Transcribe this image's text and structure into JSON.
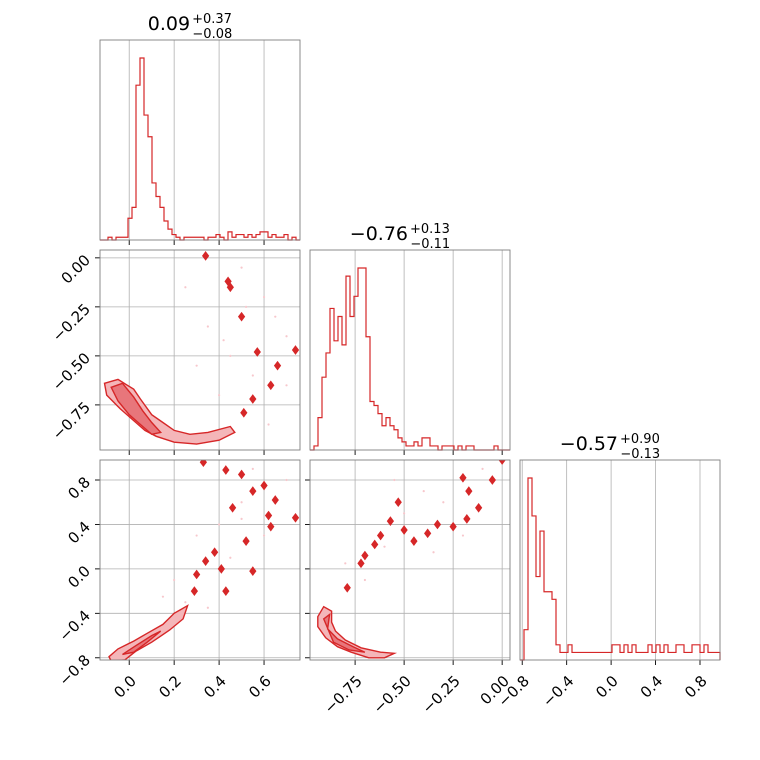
{
  "chart_data": {
    "type": "corner",
    "color": "#d62728",
    "fill_color": "#f4b6b9",
    "scatter_color": "#f7c7cc",
    "grid": true,
    "parameters": [
      {
        "range": [
          -0.13,
          0.76
        ],
        "ticks": [
          0.0,
          0.2,
          0.4,
          0.6
        ],
        "tick_labels": [
          "0.0",
          "0.2",
          "0.4",
          "0.6"
        ],
        "title_value": "0.09",
        "title_plus": "+0.37",
        "title_minus": "−0.08"
      },
      {
        "range": [
          -0.98,
          0.04
        ],
        "ticks": [
          -0.75,
          -0.5,
          -0.25,
          0.0
        ],
        "tick_labels": [
          "−0.75",
          "−0.50",
          "−0.25",
          "0.00"
        ],
        "title_value": "−0.76",
        "title_plus": "+0.13",
        "title_minus": "−0.11"
      },
      {
        "range": [
          -0.82,
          0.98
        ],
        "ticks": [
          -0.8,
          -0.4,
          0.0,
          0.4,
          0.8
        ],
        "tick_labels": [
          "−0.8",
          "−0.4",
          "0.0",
          "0.4",
          "0.8"
        ],
        "title_value": "−0.57",
        "title_plus": "+0.90",
        "title_minus": "−0.13"
      }
    ],
    "histograms": [
      {
        "bins": 50,
        "counts": [
          0,
          0,
          1,
          0,
          1,
          1,
          1,
          8,
          12,
          57,
          67,
          46,
          38,
          21,
          16,
          12,
          7,
          4,
          2,
          1,
          0,
          1,
          1,
          1,
          1,
          1,
          0,
          1,
          1,
          2,
          1,
          0,
          3,
          1,
          2,
          2,
          1,
          2,
          1,
          2,
          3,
          3,
          1,
          2,
          1,
          1,
          2,
          0,
          1,
          0
        ]
      },
      {
        "bins": 50,
        "counts": [
          0,
          1,
          8,
          18,
          24,
          35,
          27,
          33,
          26,
          43,
          33,
          38,
          45,
          45,
          28,
          12,
          11,
          9,
          6,
          8,
          6,
          5,
          3,
          2,
          1,
          1,
          2,
          1,
          3,
          3,
          1,
          1,
          0,
          1,
          1,
          1,
          0,
          1,
          0,
          1,
          1,
          0,
          0,
          0,
          0,
          0,
          1,
          0,
          0,
          0
        ]
      },
      {
        "bins": 50,
        "counts": [
          0,
          4,
          24,
          19,
          11,
          17,
          9,
          9,
          8,
          2,
          1,
          1,
          2,
          1,
          1,
          1,
          1,
          1,
          1,
          1,
          1,
          1,
          1,
          2,
          2,
          1,
          2,
          1,
          2,
          1,
          1,
          1,
          2,
          1,
          2,
          1,
          2,
          1,
          1,
          2,
          2,
          1,
          1,
          2,
          2,
          1,
          2,
          1,
          1,
          1
        ]
      }
    ],
    "contours": [
      {
        "x_param": 0,
        "y_param": 1,
        "outer": [
          [
            -0.11,
            -0.64
          ],
          [
            -0.05,
            -0.62
          ],
          [
            0.02,
            -0.67
          ],
          [
            0.05,
            -0.72
          ],
          [
            0.1,
            -0.8
          ],
          [
            0.15,
            -0.84
          ],
          [
            0.2,
            -0.88
          ],
          [
            0.27,
            -0.9
          ],
          [
            0.35,
            -0.89
          ],
          [
            0.45,
            -0.86
          ],
          [
            0.47,
            -0.89
          ],
          [
            0.4,
            -0.93
          ],
          [
            0.3,
            -0.95
          ],
          [
            0.2,
            -0.94
          ],
          [
            0.12,
            -0.91
          ],
          [
            0.07,
            -0.88
          ],
          [
            0.02,
            -0.83
          ],
          [
            -0.04,
            -0.77
          ],
          [
            -0.1,
            -0.7
          ]
        ],
        "inner": [
          [
            -0.08,
            -0.66
          ],
          [
            -0.03,
            -0.64
          ],
          [
            0.02,
            -0.71
          ],
          [
            0.06,
            -0.78
          ],
          [
            0.1,
            -0.84
          ],
          [
            0.14,
            -0.89
          ],
          [
            0.1,
            -0.9
          ],
          [
            0.05,
            -0.85
          ],
          [
            0.0,
            -0.8
          ],
          [
            -0.05,
            -0.73
          ]
        ],
        "islands": [
          [
            0.34,
            0.01
          ],
          [
            0.44,
            -0.12
          ],
          [
            0.45,
            -0.15
          ],
          [
            0.5,
            -0.3
          ],
          [
            0.57,
            -0.48
          ],
          [
            0.63,
            -0.65
          ],
          [
            0.55,
            -0.72
          ],
          [
            0.51,
            -0.79
          ],
          [
            0.74,
            -0.47
          ],
          [
            0.66,
            -0.55
          ]
        ],
        "scatter": [
          [
            0.5,
            -0.05
          ],
          [
            0.6,
            -0.2
          ],
          [
            0.7,
            -0.4
          ],
          [
            0.55,
            -0.6
          ],
          [
            0.35,
            -0.35
          ],
          [
            0.45,
            -0.5
          ],
          [
            0.62,
            -0.85
          ],
          [
            0.25,
            -0.15
          ],
          [
            0.65,
            -0.3
          ],
          [
            0.4,
            -0.7
          ],
          [
            0.3,
            -0.55
          ],
          [
            0.7,
            -0.65
          ],
          [
            0.52,
            -0.25
          ],
          [
            0.42,
            -0.42
          ]
        ]
      },
      {
        "x_param": 0,
        "y_param": 2,
        "outer": [
          [
            -0.09,
            -0.79
          ],
          [
            -0.05,
            -0.72
          ],
          [
            0.02,
            -0.65
          ],
          [
            0.08,
            -0.58
          ],
          [
            0.15,
            -0.5
          ],
          [
            0.2,
            -0.4
          ],
          [
            0.26,
            -0.33
          ],
          [
            0.24,
            -0.45
          ],
          [
            0.18,
            -0.55
          ],
          [
            0.1,
            -0.66
          ],
          [
            0.03,
            -0.74
          ],
          [
            -0.02,
            -0.82
          ],
          [
            -0.08,
            -0.83
          ]
        ],
        "inner": [
          [
            -0.03,
            -0.77
          ],
          [
            0.03,
            -0.69
          ],
          [
            0.1,
            -0.6
          ],
          [
            0.14,
            -0.56
          ],
          [
            0.08,
            -0.66
          ],
          [
            0.02,
            -0.75
          ]
        ],
        "islands": [
          [
            0.33,
            0.96
          ],
          [
            0.43,
            0.89
          ],
          [
            0.5,
            0.85
          ],
          [
            0.6,
            0.75
          ],
          [
            0.46,
            0.55
          ],
          [
            0.55,
            0.7
          ],
          [
            0.62,
            0.48
          ],
          [
            0.63,
            0.38
          ],
          [
            0.74,
            0.46
          ],
          [
            0.52,
            0.25
          ],
          [
            0.38,
            0.15
          ],
          [
            0.34,
            0.07
          ],
          [
            0.3,
            -0.05
          ],
          [
            0.41,
            0.0
          ],
          [
            0.43,
            -0.2
          ],
          [
            0.29,
            -0.2
          ],
          [
            0.55,
            -0.02
          ],
          [
            0.65,
            0.62
          ]
        ],
        "scatter": [
          [
            0.5,
            0.6
          ],
          [
            0.6,
            0.3
          ],
          [
            0.4,
            0.4
          ],
          [
            0.2,
            -0.1
          ],
          [
            0.3,
            0.3
          ],
          [
            0.55,
            0.9
          ],
          [
            0.45,
            0.1
          ],
          [
            0.35,
            -0.35
          ],
          [
            0.25,
            -0.3
          ],
          [
            0.7,
            0.8
          ],
          [
            0.15,
            -0.25
          ],
          [
            0.5,
            0.45
          ]
        ]
      },
      {
        "x_param": 1,
        "y_param": 2,
        "outer": [
          [
            -0.94,
            -0.43
          ],
          [
            -0.91,
            -0.34
          ],
          [
            -0.87,
            -0.38
          ],
          [
            -0.87,
            -0.48
          ],
          [
            -0.85,
            -0.56
          ],
          [
            -0.8,
            -0.64
          ],
          [
            -0.72,
            -0.71
          ],
          [
            -0.62,
            -0.75
          ],
          [
            -0.55,
            -0.76
          ],
          [
            -0.6,
            -0.8
          ],
          [
            -0.68,
            -0.8
          ],
          [
            -0.77,
            -0.75
          ],
          [
            -0.84,
            -0.7
          ],
          [
            -0.9,
            -0.62
          ],
          [
            -0.94,
            -0.52
          ]
        ],
        "inner": [
          [
            -0.91,
            -0.45
          ],
          [
            -0.88,
            -0.41
          ],
          [
            -0.89,
            -0.54
          ],
          [
            -0.84,
            -0.63
          ],
          [
            -0.76,
            -0.7
          ],
          [
            -0.7,
            -0.75
          ],
          [
            -0.78,
            -0.73
          ],
          [
            -0.86,
            -0.66
          ]
        ],
        "islands": [
          [
            -0.79,
            -0.17
          ],
          [
            -0.72,
            0.05
          ],
          [
            -0.7,
            0.12
          ],
          [
            -0.62,
            0.3
          ],
          [
            -0.57,
            0.43
          ],
          [
            -0.5,
            0.35
          ],
          [
            -0.45,
            0.25
          ],
          [
            -0.38,
            0.32
          ],
          [
            -0.25,
            0.38
          ],
          [
            -0.33,
            0.4
          ],
          [
            -0.18,
            0.45
          ],
          [
            -0.12,
            0.55
          ],
          [
            -0.17,
            0.7
          ],
          [
            -0.05,
            0.8
          ],
          [
            0.0,
            0.98
          ],
          [
            -0.2,
            0.82
          ],
          [
            -0.53,
            0.6
          ],
          [
            -0.65,
            0.22
          ]
        ],
        "scatter": [
          [
            -0.6,
            0.2
          ],
          [
            -0.5,
            0.5
          ],
          [
            -0.4,
            0.7
          ],
          [
            -0.3,
            0.6
          ],
          [
            -0.2,
            0.3
          ],
          [
            -0.7,
            -0.1
          ],
          [
            -0.8,
            0.05
          ],
          [
            -0.1,
            0.9
          ],
          [
            -0.55,
            0.8
          ],
          [
            -0.35,
            0.15
          ]
        ]
      }
    ]
  }
}
